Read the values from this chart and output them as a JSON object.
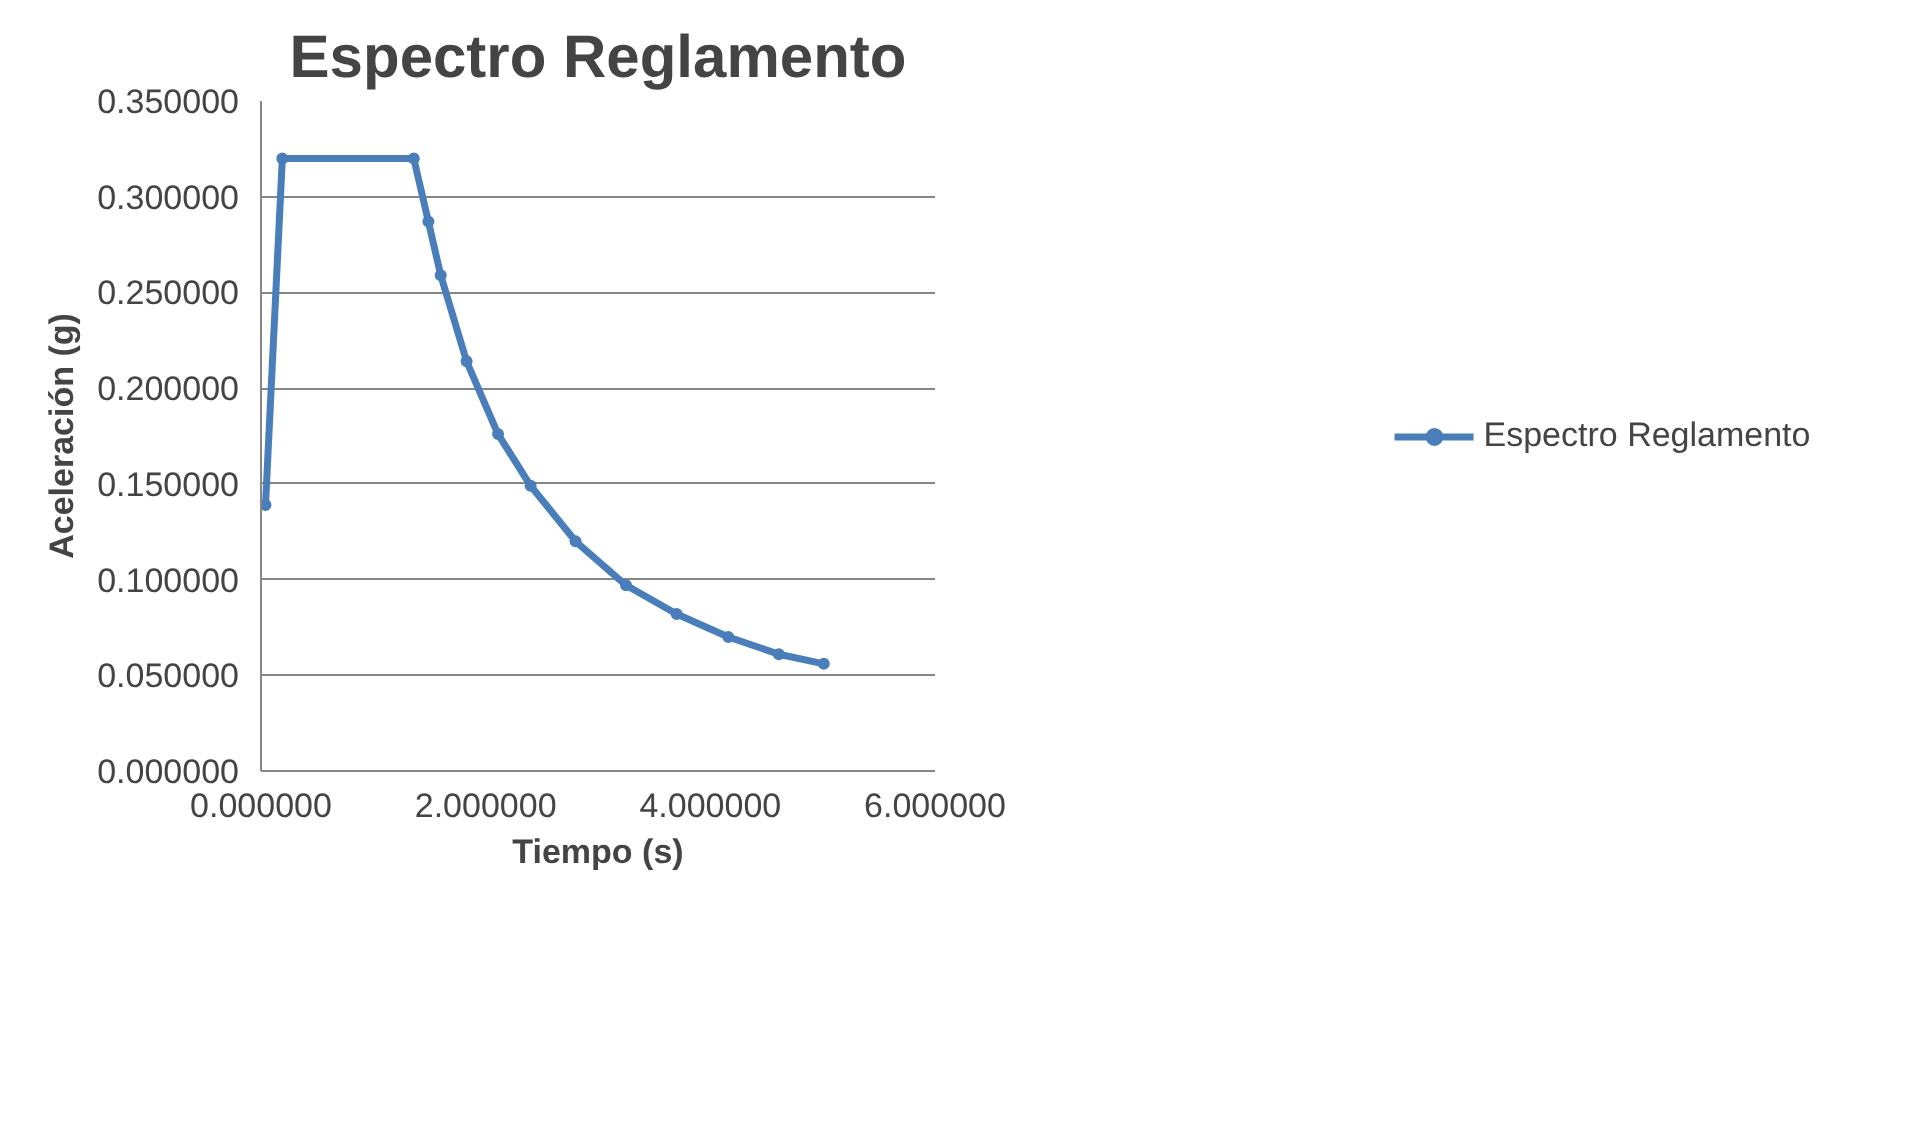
{
  "chart_data": {
    "type": "line",
    "title": "Espectro Reglamento",
    "xlabel": "Tiempo (s)",
    "ylabel": "Aceleración (g)",
    "x": [
      0.04,
      0.19,
      1.36,
      1.49,
      1.6,
      1.83,
      2.11,
      2.4,
      2.8,
      3.25,
      3.7,
      4.16,
      4.61,
      5.01
    ],
    "series": [
      {
        "name": "Espectro Reglamento",
        "color": "#4a7ebb",
        "values": [
          0.139,
          0.32,
          0.32,
          0.287,
          0.259,
          0.214,
          0.176,
          0.149,
          0.12,
          0.097,
          0.082,
          0.07,
          0.061,
          0.056
        ]
      }
    ],
    "xlim": [
      0,
      6
    ],
    "ylim": [
      0,
      0.35
    ],
    "xticks": [
      {
        "value": 0,
        "label": "0.000000"
      },
      {
        "value": 2,
        "label": "2.000000"
      },
      {
        "value": 4,
        "label": "4.000000"
      },
      {
        "value": 6,
        "label": "6.000000"
      }
    ],
    "yticks": [
      {
        "value": 0,
        "label": "0.000000"
      },
      {
        "value": 0.05,
        "label": "0.050000"
      },
      {
        "value": 0.1,
        "label": "0.100000"
      },
      {
        "value": 0.15,
        "label": "0.150000"
      },
      {
        "value": 0.2,
        "label": "0.200000"
      },
      {
        "value": 0.25,
        "label": "0.250000"
      },
      {
        "value": 0.3,
        "label": "0.300000"
      },
      {
        "value": 0.35,
        "label": "0.350000"
      }
    ],
    "grid": "y",
    "legend": "right",
    "marker": "circle",
    "line_style": "solid"
  }
}
